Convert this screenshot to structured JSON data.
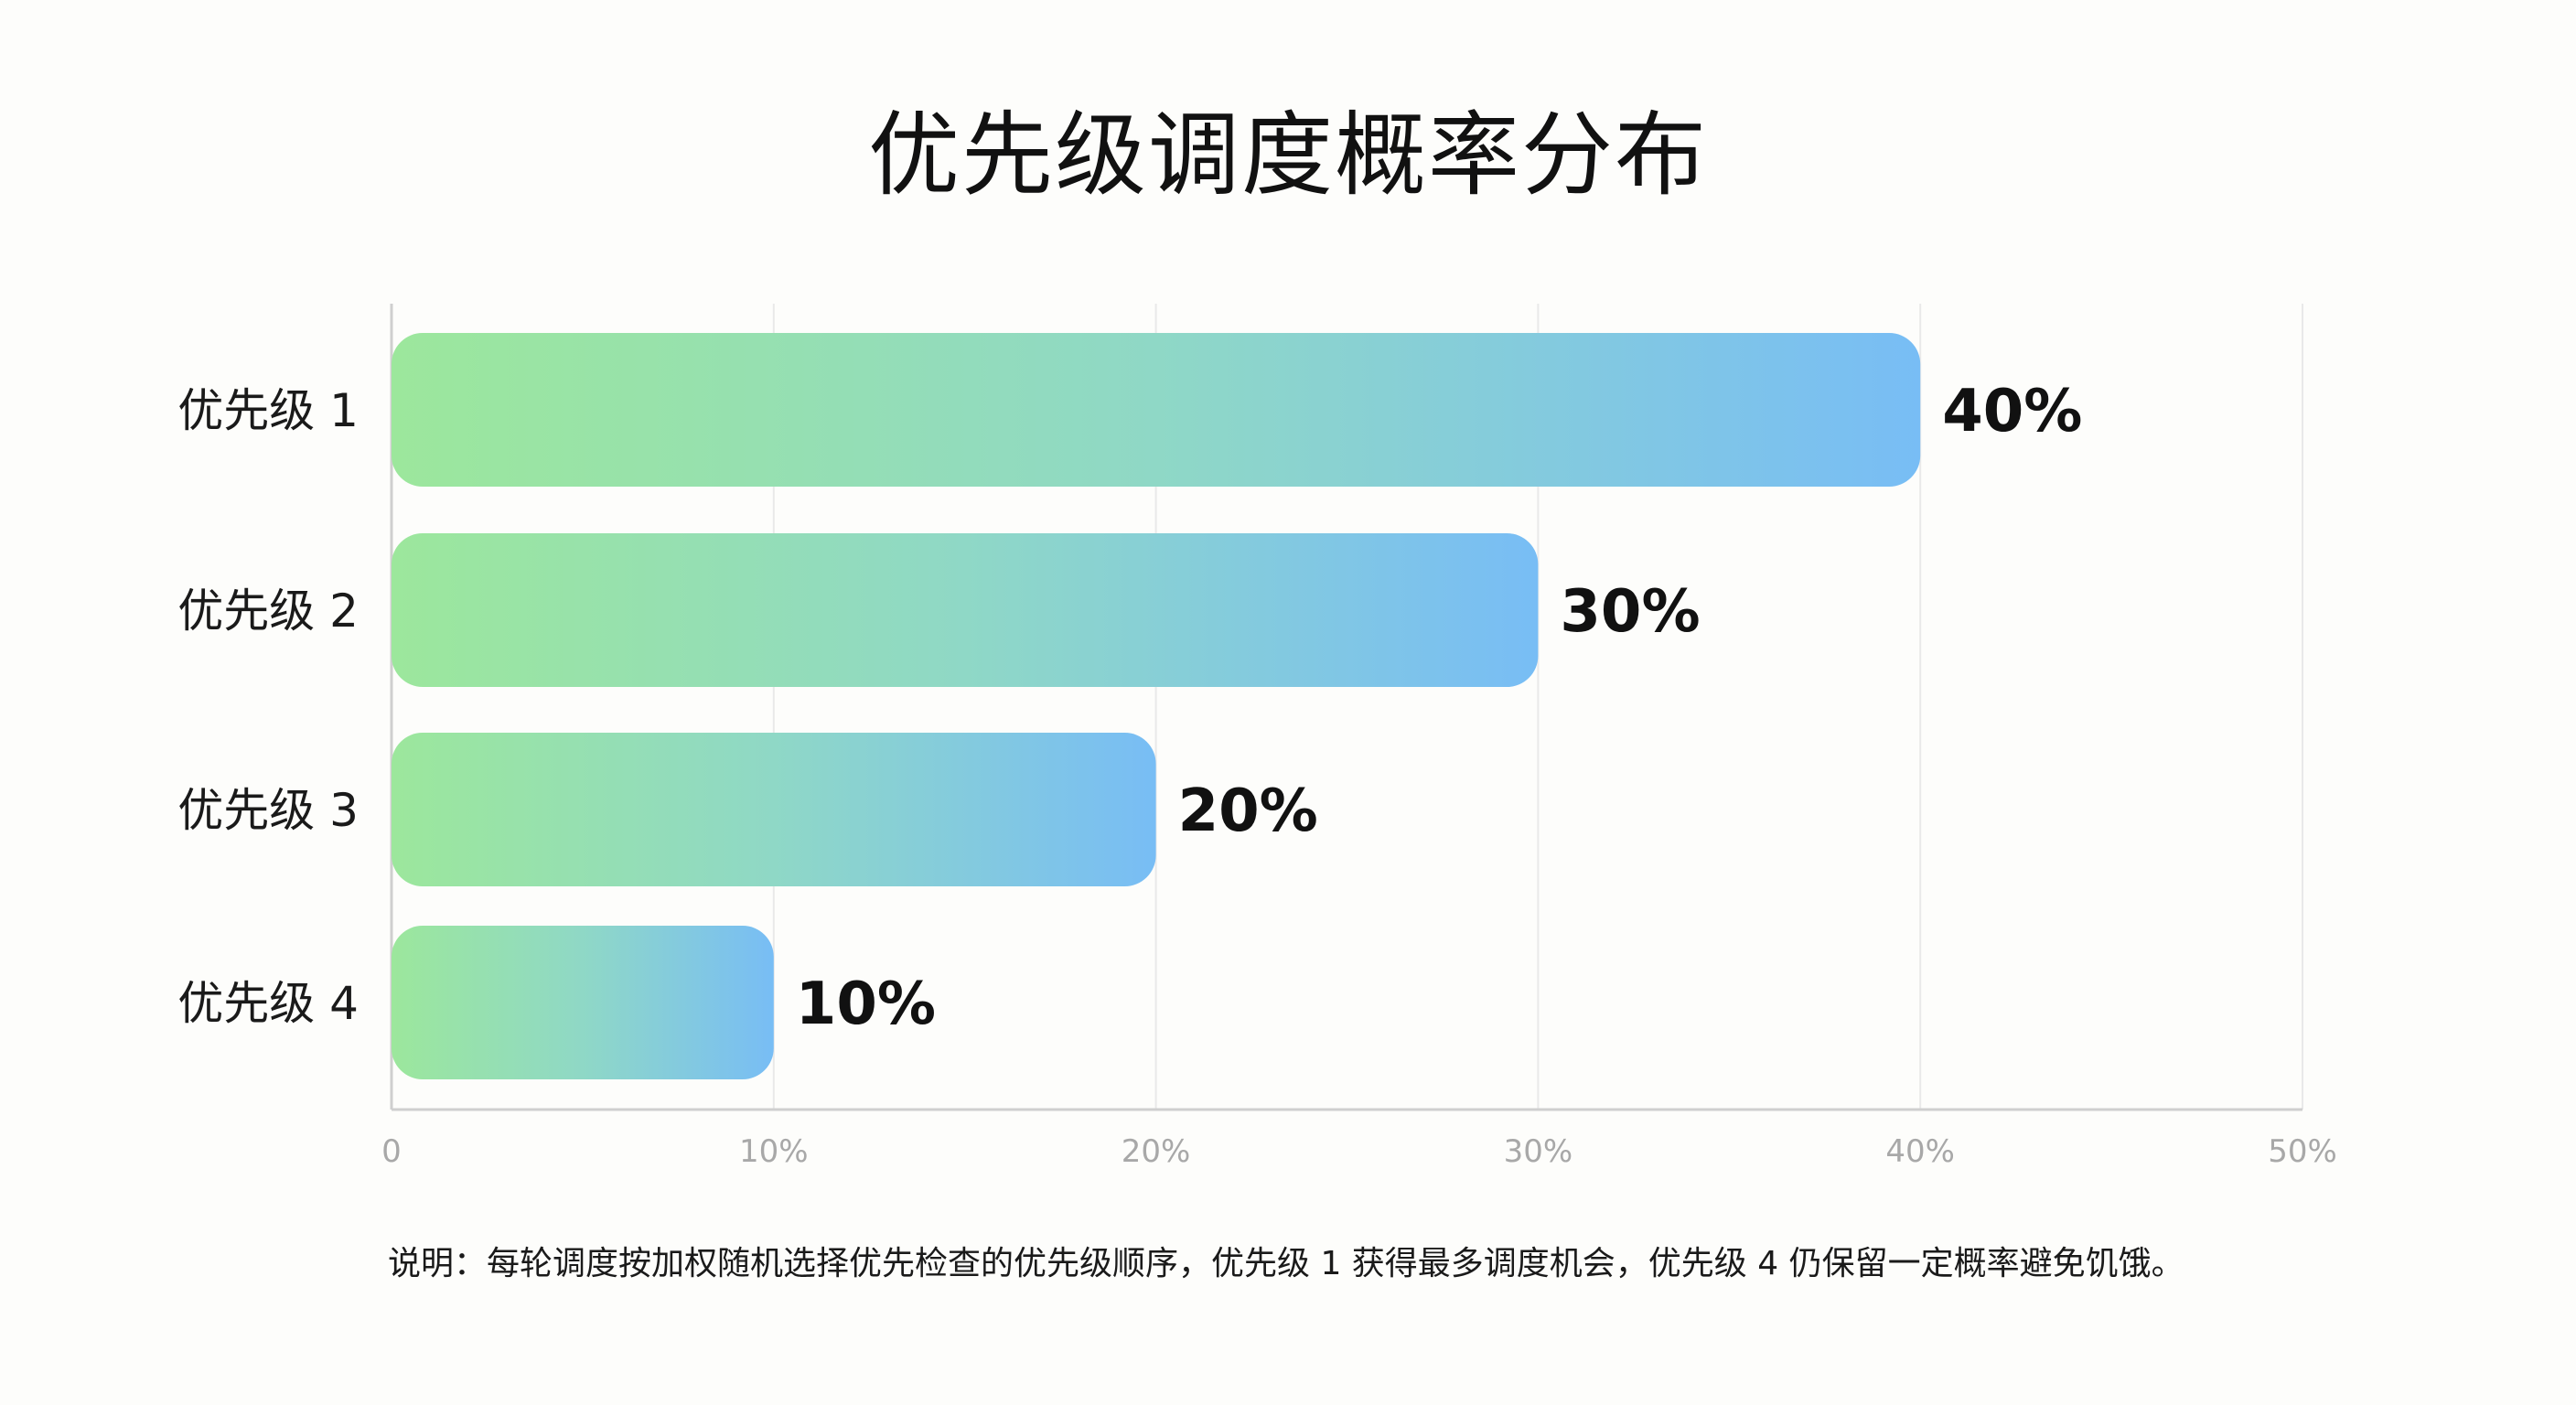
{
  "chart_data": {
    "type": "bar",
    "orientation": "horizontal",
    "title": "优先级调度概率分布",
    "categories": [
      "优先级 1",
      "优先级 2",
      "优先级 3",
      "优先级 4"
    ],
    "values": [
      40,
      30,
      20,
      10
    ],
    "value_labels": [
      "40%",
      "30%",
      "20%",
      "10%"
    ],
    "xlim": [
      0,
      50
    ],
    "x_ticks": [
      0,
      10,
      20,
      30,
      40,
      50
    ],
    "x_tick_labels": [
      "0",
      "10%",
      "20%",
      "30%",
      "40%",
      "50%"
    ],
    "xlabel": "",
    "ylabel": "",
    "grid": true,
    "legend": "none",
    "bar_gradient": [
      "#9ce79c",
      "#8fd8c6",
      "#78bdf5"
    ],
    "note": "说明：每轮调度按加权随机选择优先检查的优先级顺序，优先级 1 获得最多调度机会，优先级 4 仍保留一定概率避免饥饿。"
  }
}
